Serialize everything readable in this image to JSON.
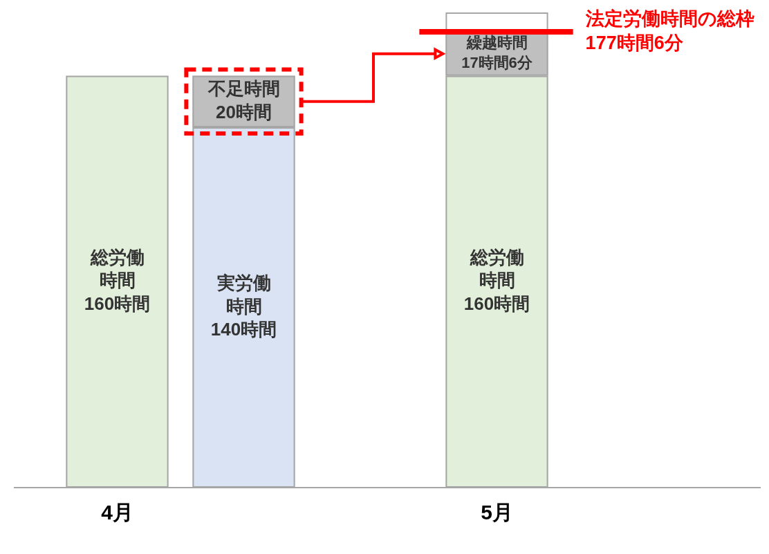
{
  "chart_data": {
    "type": "bar",
    "categories": [
      "4月",
      null,
      null,
      "5月"
    ],
    "stacked": true,
    "tick_labels": "x",
    "series": [
      {
        "name": "総労働時間",
        "color": "#e2efda",
        "values": [
          160,
          null,
          null,
          160
        ],
        "value_labels": [
          "160時間",
          null,
          null,
          "160時間"
        ]
      },
      {
        "name": "実労働時間",
        "color": "#dae3f3",
        "values": [
          null,
          140,
          null,
          null
        ],
        "value_labels": [
          null,
          "140時間",
          null,
          null
        ]
      },
      {
        "name": "不足時間",
        "color": "#bfbfbf",
        "values": [
          null,
          20,
          null,
          null
        ],
        "value_labels": [
          null,
          "20時間",
          null,
          null
        ],
        "line_style": "dashed"
      },
      {
        "name": "繰越時間",
        "color": "#bfbfbf",
        "values": [
          null,
          null,
          null,
          17.1
        ],
        "value_labels": [
          null,
          null,
          null,
          "17時間6分"
        ]
      },
      {
        "color": "#ffffff",
        "values": [
          null,
          null,
          null,
          7.5
        ]
      }
    ],
    "ref_lines": [
      {
        "axis": "y",
        "value": 177.1,
        "label": "法定労働時間の総枠177時間6分",
        "color": "#ff0000"
      }
    ]
  }
}
